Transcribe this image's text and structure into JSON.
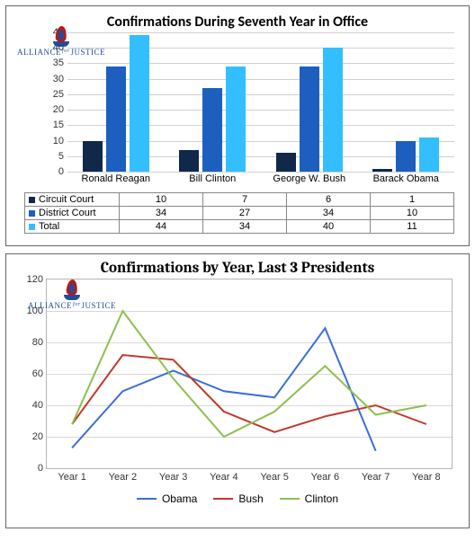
{
  "logo": {
    "word1": "ALLIANCE",
    "for": "for",
    "word2": "JUSTICE"
  },
  "chart1": {
    "type": "bar",
    "title": "Confirmations During Seventh Year in Office",
    "title_fontsize": 16,
    "ymax": 45,
    "ymin": 0,
    "ytick_step": 5,
    "categories": [
      "Ronald Reagan",
      "Bill Clinton",
      "George W. Bush",
      "Barack Obama"
    ],
    "series": [
      {
        "name": "Circuit Court",
        "color": "#10284a",
        "values": [
          10,
          7,
          6,
          1
        ]
      },
      {
        "name": "District Court",
        "color": "#1d5fbf",
        "values": [
          34,
          27,
          34,
          10
        ]
      },
      {
        "name": "Total",
        "color": "#33bfff",
        "values": [
          44,
          34,
          40,
          11
        ]
      }
    ],
    "gridline_color": "#d0d0d0",
    "table_border_color": "#888888",
    "label_fontsize": 11
  },
  "chart2": {
    "type": "line",
    "title": "Confirmations by Year, Last 3 Presidents",
    "title_fontsize": 17,
    "ymax": 120,
    "ymin": 0,
    "ytick_step": 20,
    "x_labels": [
      "Year 1",
      "Year 2",
      "Year 3",
      "Year 4",
      "Year 5",
      "Year 6",
      "Year 7",
      "Year 8"
    ],
    "series": [
      {
        "name": "Obama",
        "color": "#3b6fd6",
        "values": [
          13,
          49,
          62,
          49,
          45,
          89,
          11,
          null
        ]
      },
      {
        "name": "Bush",
        "color": "#c0392b",
        "values": [
          28,
          72,
          69,
          36,
          23,
          33,
          40,
          28
        ]
      },
      {
        "name": "Clinton",
        "color": "#8fbf4f",
        "values": [
          28,
          100,
          57,
          20,
          36,
          65,
          34,
          40
        ]
      }
    ],
    "gridline_color": "#d8d8d8",
    "plot_border_color": "#b5b5b5",
    "label_fontsize": 11,
    "line_width": 2
  }
}
